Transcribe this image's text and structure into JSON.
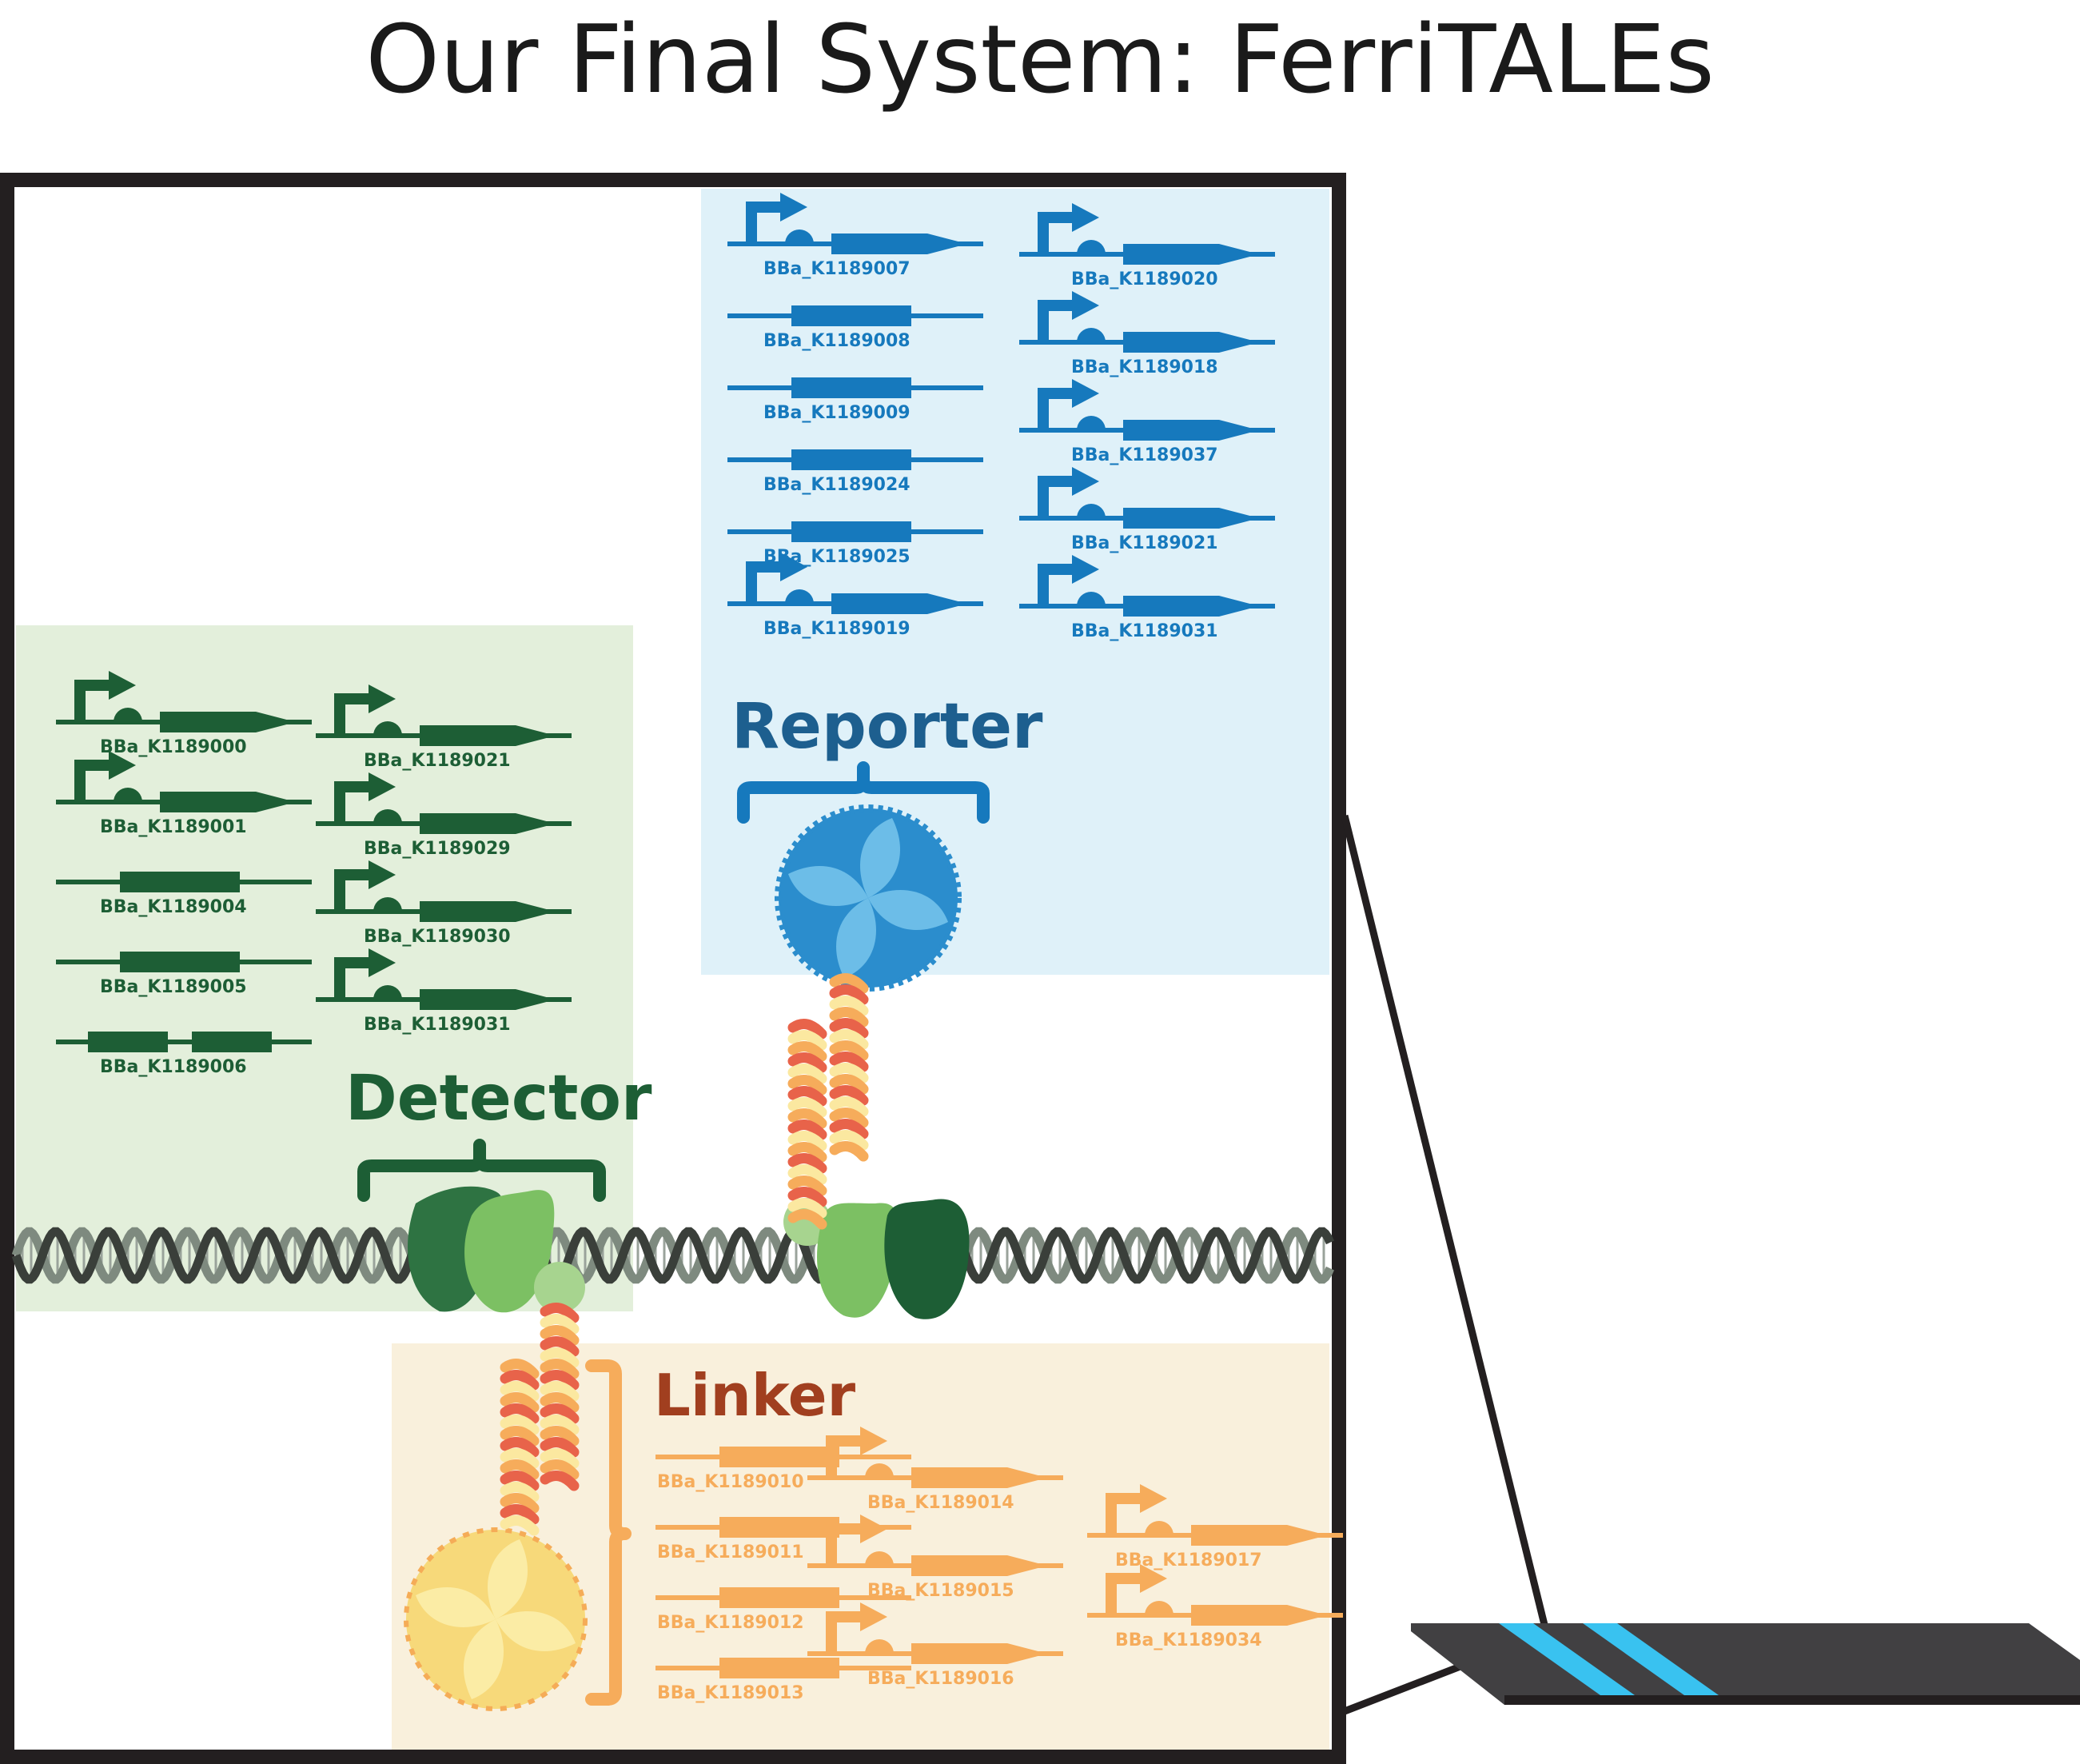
{
  "title": "Our Final System: FerriTALEs",
  "colors": {
    "reporter": "#1679bd",
    "reporter_bg": "#dff1f9",
    "detector": "#1d5e35",
    "detector_bg": "#e3efdb",
    "linker": "#f6ac5b",
    "linker_bg": "#f9f0dc",
    "linker_heading": "#a13f1f",
    "frame": "#231f20",
    "strip_band": "#39c2f0"
  },
  "reporter": {
    "heading": "Reporter",
    "parts_left": [
      {
        "id": "BBa_K1189007",
        "icon": "promoter-rbs-cds-icon"
      },
      {
        "id": "BBa_K1189008",
        "icon": "cds-icon"
      },
      {
        "id": "BBa_K1189009",
        "icon": "cds-icon"
      },
      {
        "id": "BBa_K1189024",
        "icon": "cds-icon"
      },
      {
        "id": "BBa_K1189025",
        "icon": "cds-icon"
      },
      {
        "id": "BBa_K1189019",
        "icon": "promoter-rbs-cds-icon"
      }
    ],
    "parts_right": [
      {
        "id": "BBa_K1189020",
        "icon": "promoter-rbs-cds-icon"
      },
      {
        "id": "BBa_K1189018",
        "icon": "promoter-rbs-cds-icon"
      },
      {
        "id": "BBa_K1189037",
        "icon": "promoter-rbs-cds-icon"
      },
      {
        "id": "BBa_K1189021",
        "icon": "promoter-rbs-cds-icon"
      },
      {
        "id": "BBa_K1189031",
        "icon": "promoter-rbs-cds-icon"
      }
    ]
  },
  "detector": {
    "heading": "Detector",
    "parts_left": [
      {
        "id": "BBa_K1189000",
        "icon": "promoter-rbs-cds-icon"
      },
      {
        "id": "BBa_K1189001",
        "icon": "promoter-rbs-cds-icon"
      },
      {
        "id": "BBa_K1189004",
        "icon": "cds-icon"
      },
      {
        "id": "BBa_K1189005",
        "icon": "cds-icon"
      },
      {
        "id": "BBa_K1189006",
        "icon": "double-cds-icon"
      }
    ],
    "parts_right": [
      {
        "id": "BBa_K1189021",
        "icon": "promoter-rbs-cds-icon"
      },
      {
        "id": "BBa_K1189029",
        "icon": "promoter-rbs-cds-icon"
      },
      {
        "id": "BBa_K1189030",
        "icon": "promoter-rbs-cds-icon"
      },
      {
        "id": "BBa_K1189031",
        "icon": "promoter-rbs-cds-icon"
      }
    ]
  },
  "linker": {
    "heading": "Linker",
    "parts_col1": [
      {
        "id": "BBa_K1189010",
        "icon": "cds-icon"
      },
      {
        "id": "BBa_K1189011",
        "icon": "cds-icon"
      },
      {
        "id": "BBa_K1189012",
        "icon": "cds-icon"
      },
      {
        "id": "BBa_K1189013",
        "icon": "cds-icon"
      }
    ],
    "parts_col2": [
      {
        "id": "BBa_K1189014",
        "icon": "promoter-rbs-cds-icon"
      },
      {
        "id": "BBa_K1189015",
        "icon": "promoter-rbs-cds-icon"
      },
      {
        "id": "BBa_K1189016",
        "icon": "promoter-rbs-cds-icon"
      }
    ],
    "parts_col3": [
      {
        "id": "BBa_K1189017",
        "icon": "promoter-rbs-cds-icon"
      },
      {
        "id": "BBa_K1189034",
        "icon": "promoter-rbs-cds-icon"
      }
    ]
  },
  "icons": [
    "dna-helix-icon",
    "ferritin-icon",
    "tale-protein-icon",
    "coiled-coil-icon",
    "curly-brace-icon",
    "test-strip-icon"
  ]
}
